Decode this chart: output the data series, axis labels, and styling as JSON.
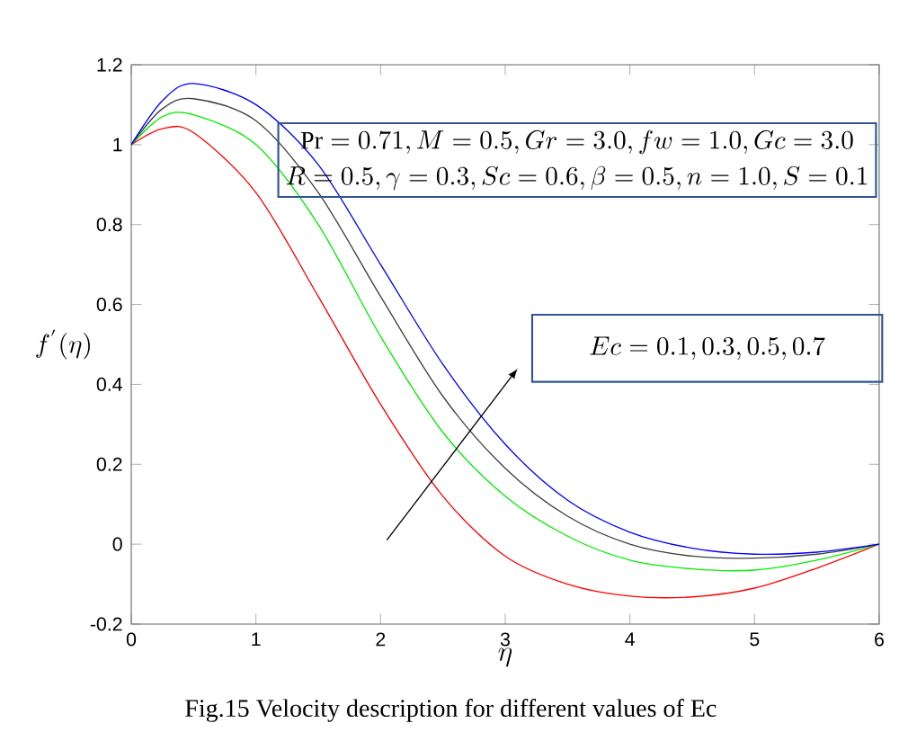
{
  "chart_data": {
    "type": "line",
    "xlabel": "\\eta",
    "ylabel": "f^{'}(\\eta)",
    "x": [
      0,
      0.25,
      0.5,
      1,
      1.5,
      2,
      2.5,
      3,
      3.5,
      4,
      4.5,
      5,
      5.5,
      6
    ],
    "series": [
      {
        "color": "#ff0000",
        "values": [
          1,
          1.04,
          1.03,
          0.88,
          0.62,
          0.35,
          0.12,
          -0.03,
          -0.1,
          -0.13,
          -0.132,
          -0.11,
          -0.06,
          0
        ]
      },
      {
        "color": "#00ee00",
        "values": [
          1,
          1.07,
          1.075,
          1.0,
          0.8,
          0.52,
          0.28,
          0.12,
          0.02,
          -0.04,
          -0.062,
          -0.065,
          -0.04,
          0
        ]
      },
      {
        "color": "#404040",
        "values": [
          1,
          1.09,
          1.115,
          1.06,
          0.88,
          0.62,
          0.37,
          0.19,
          0.07,
          0.0,
          -0.03,
          -0.035,
          -0.025,
          0
        ]
      },
      {
        "color": "#0000ff",
        "values": [
          1,
          1.11,
          1.153,
          1.1,
          0.95,
          0.7,
          0.45,
          0.25,
          0.11,
          0.03,
          -0.01,
          -0.025,
          -0.02,
          0
        ]
      }
    ],
    "xlim": [
      0,
      6
    ],
    "ylim": [
      -0.2,
      1.2
    ],
    "xticks": [
      0,
      1,
      2,
      3,
      4,
      5,
      6
    ],
    "yticks": [
      -0.2,
      0,
      0.2,
      0.4,
      0.6,
      0.8,
      1,
      1.2
    ],
    "grid": false,
    "marker": "none",
    "line_style": "solid",
    "annotations": [
      "\\mathrm{Pr}=0.71,M=0.5,Gr=3.0,fw=1.0,Gc=3.0",
      "R=0.5,\\gamma=0.3,Sc=0.6,\\beta=0.5,n=1.0,S=0.1",
      "Ec=0.1,0.3,0.5,0.7",
      "Fig.15  Velocity description for different values of Ec"
    ]
  }
}
